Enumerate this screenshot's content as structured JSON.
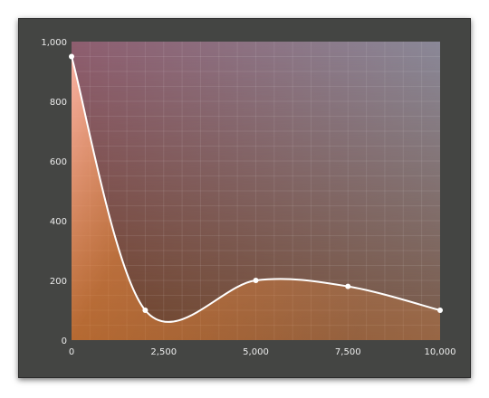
{
  "chart_data": {
    "type": "area",
    "title": "",
    "xlabel": "",
    "ylabel": "",
    "xlim": [
      0,
      10000
    ],
    "ylim": [
      0,
      1000
    ],
    "x_ticks": [
      "0",
      "2,500",
      "5,000",
      "7,500",
      "10,000"
    ],
    "y_ticks": [
      "0",
      "200",
      "400",
      "600",
      "800",
      "1,000"
    ],
    "grid": true,
    "curve": "smooth",
    "series": [
      {
        "x": [
          0,
          2000,
          5000,
          7500,
          10000
        ],
        "y": [
          950,
          100,
          200,
          180,
          100
        ]
      }
    ]
  },
  "colors": {
    "panel_background": "#444543",
    "curve": "#ffffff",
    "point_marker": "#ffffff",
    "fill_warm": "#f08a3a",
    "fill_light": "#ffb6a6",
    "plot_top_left": "#8e5e70",
    "plot_top_right": "#8a8898",
    "plot_bottom_left": "#6e4228",
    "plot_bottom_right": "#7a5a48"
  }
}
